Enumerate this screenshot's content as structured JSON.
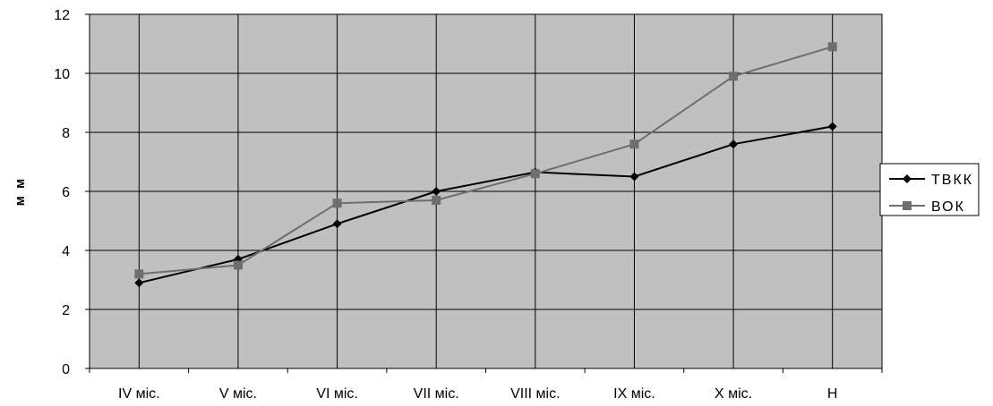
{
  "chart_data": {
    "type": "line",
    "categories": [
      "IV міс.",
      "V міс.",
      "VI міс.",
      "VII міс.",
      "VIII міс.",
      "IX міс.",
      "X міс.",
      "Н"
    ],
    "series": [
      {
        "name": "ТВКК",
        "values": [
          2.9,
          3.7,
          4.9,
          6.0,
          6.65,
          6.5,
          7.6,
          8.2
        ],
        "color": "#000000",
        "marker": "diamond"
      },
      {
        "name": "ВОК",
        "values": [
          3.2,
          3.5,
          5.6,
          5.7,
          6.6,
          7.6,
          9.9,
          10.9
        ],
        "color": "#6e6e6e",
        "marker": "square"
      }
    ],
    "ylabel": "м м",
    "xlabel": "",
    "title": "",
    "ylim": [
      0,
      12
    ],
    "yticks": [
      0,
      2,
      4,
      6,
      8,
      10,
      12
    ],
    "grid": true,
    "plot_background": "#c0c0c0",
    "legend_position": "right"
  }
}
